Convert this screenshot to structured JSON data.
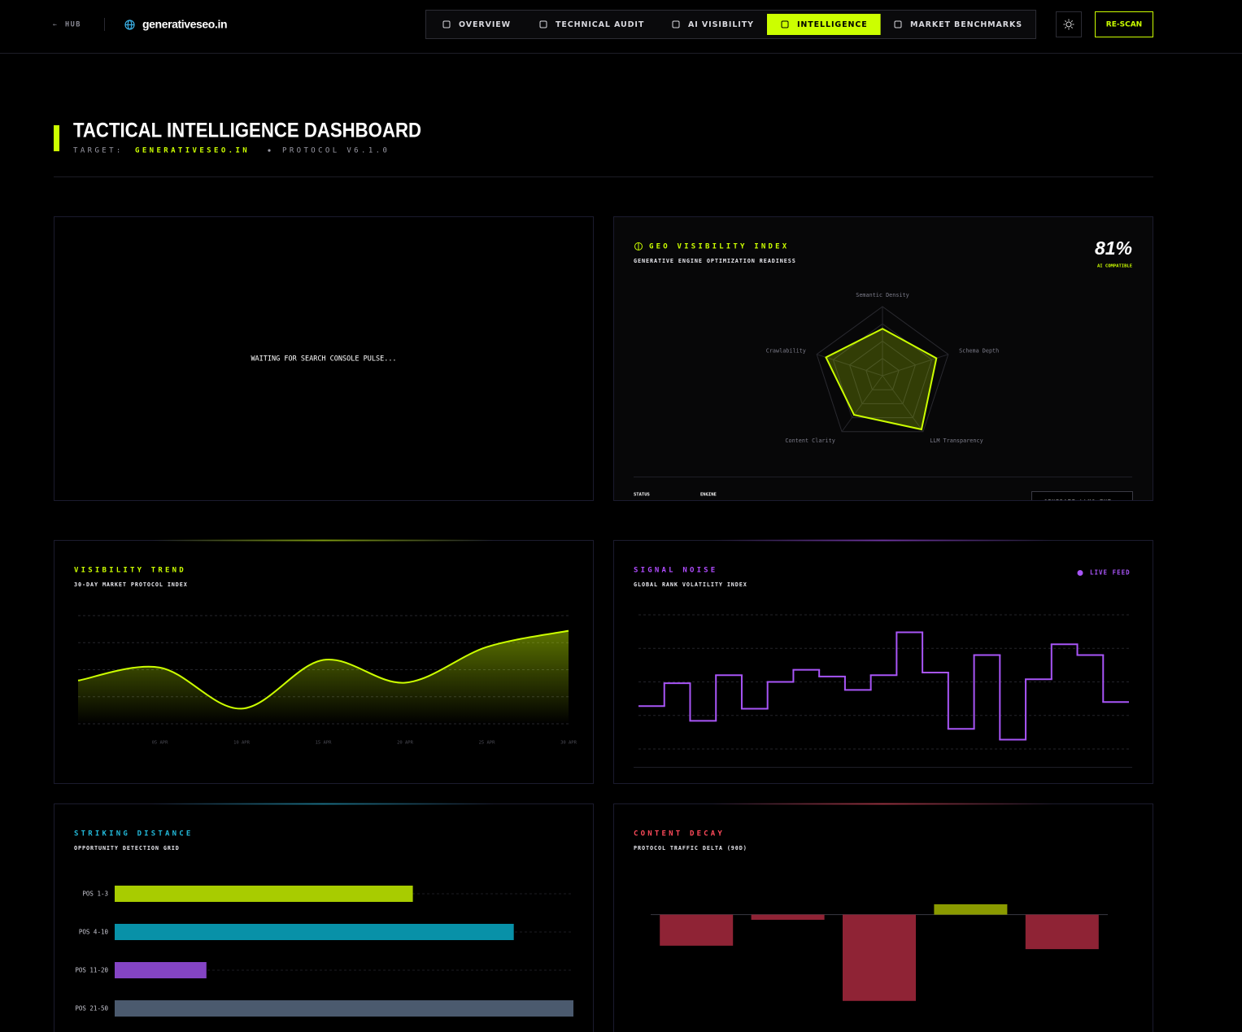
{
  "nav": {
    "back": "HUB",
    "site": "generativeseo.in",
    "tabs": [
      "OVERVIEW",
      "TECHNICAL AUDIT",
      "AI VISIBILITY",
      "INTELLIGENCE",
      "MARKET BENCHMARKS"
    ],
    "active_tab": 3,
    "action": "RE-SCAN"
  },
  "header": {
    "title": "TACTICAL INTELLIGENCE DASHBOARD",
    "target_label": "TARGET:",
    "target": "GENERATIVESEO.IN",
    "protocol": "PROTOCOL V6.1.0"
  },
  "console_panel": {
    "message": "WAITING FOR SEARCH CONSOLE PULSE..."
  },
  "chart_data": [
    {
      "type": "radar",
      "title": "GEO VISIBILITY INDEX",
      "subtitle": "GENERATIVE ENGINE OPTIMIZATION READINESS",
      "score_label": "81%",
      "score_caption": "AI COMPATIBLE",
      "categories": [
        "Semantic Density",
        "Schema Depth",
        "LLM Transparency",
        "Content Clarity",
        "Crawlability"
      ],
      "values": [
        68,
        82,
        96,
        70,
        86
      ],
      "rlim": [
        0,
        100
      ],
      "rticks": [
        25,
        50,
        75,
        100
      ],
      "color": "#ccff00",
      "accent": "#ccff00",
      "footer": {
        "status": "STATUS",
        "engine": "ENGINE",
        "button": "GENERATE LLMS.TXT →"
      }
    },
    {
      "type": "area",
      "title": "VISIBILITY TREND",
      "subtitle": "30-DAY MARKET PROTOCOL INDEX",
      "categories": [
        null,
        "05 APR",
        "10 APR",
        "15 APR",
        "20 APR",
        "25 APR",
        "30 APR"
      ],
      "values": [
        40,
        52,
        14,
        59,
        38,
        71,
        86
      ],
      "ylim": [
        0,
        100
      ],
      "yticks": [
        0,
        25,
        50,
        75,
        100
      ],
      "grid": true,
      "color": "#ccff00",
      "accent": "#ccff00"
    },
    {
      "type": "step",
      "title": "SIGNAL NOISE",
      "subtitle": "GLOBAL RANK VOLATILITY INDEX",
      "series": [
        {
          "name": "LIVE FEED",
          "color": "#a855f7",
          "values": [
            32,
            49,
            21,
            55,
            30,
            50,
            59,
            54,
            44,
            55,
            87,
            57,
            15,
            70,
            7,
            52,
            78,
            70,
            35
          ]
        }
      ],
      "ylim": [
        0,
        100
      ],
      "yticks": [
        0,
        25,
        50,
        75,
        100
      ],
      "grid": true,
      "accent": "#b04cff"
    },
    {
      "type": "hbar",
      "title": "STRIKING DISTANCE",
      "subtitle": "OPPORTUNITY DETECTION GRID",
      "categories": [
        "POS 1-3",
        "POS 4-10",
        "POS 11-20",
        "POS 21-50"
      ],
      "values": [
        65,
        87,
        20,
        100
      ],
      "colors": [
        "#a8cc00",
        "#0891a8",
        "#8444c4",
        "#4b5a6e"
      ],
      "xlim": [
        0,
        100
      ],
      "accent": "#22b8d8"
    },
    {
      "type": "bar",
      "title": "CONTENT DECAY",
      "subtitle": "PROTOCOL TRAFFIC DELTA (90D)",
      "values": [
        -18,
        -3,
        -50,
        6,
        -20
      ],
      "ylim": [
        -60,
        30
      ],
      "positive_color": "#8a9a00",
      "negative_color": "#8f2335",
      "accent": "#ff4a5a"
    }
  ]
}
